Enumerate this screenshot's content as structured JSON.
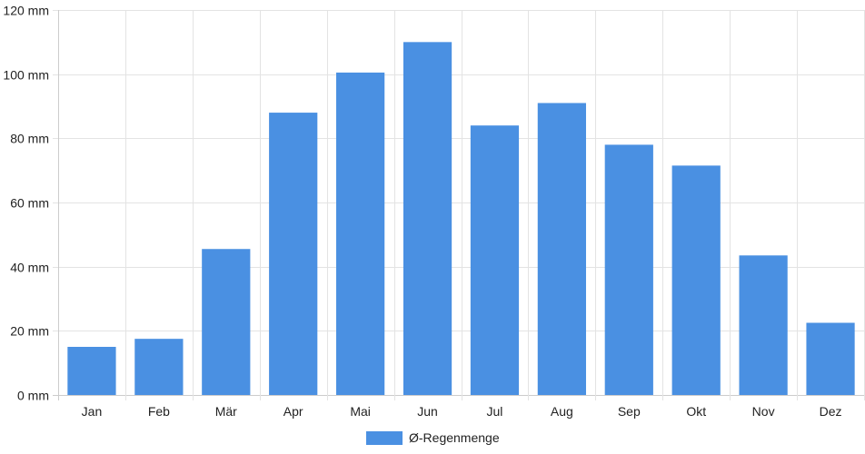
{
  "chart_data": {
    "type": "bar",
    "categories": [
      "Jan",
      "Feb",
      "Mär",
      "Apr",
      "Mai",
      "Jun",
      "Jul",
      "Aug",
      "Sep",
      "Okt",
      "Nov",
      "Dez"
    ],
    "series": [
      {
        "name": "Ø-Regenmenge",
        "values": [
          15,
          17.5,
          45.5,
          88,
          100.5,
          110,
          84,
          91,
          78,
          71.5,
          43.5,
          22.5
        ],
        "color": "#4a90e2"
      }
    ],
    "y_tick_labels": [
      "0 mm",
      "20 mm",
      "40 mm",
      "60 mm",
      "80 mm",
      "100 mm",
      "120 mm"
    ],
    "ylim": [
      0,
      120
    ],
    "y_unit": "mm",
    "grid": true,
    "legend_position": "bottom-center"
  }
}
